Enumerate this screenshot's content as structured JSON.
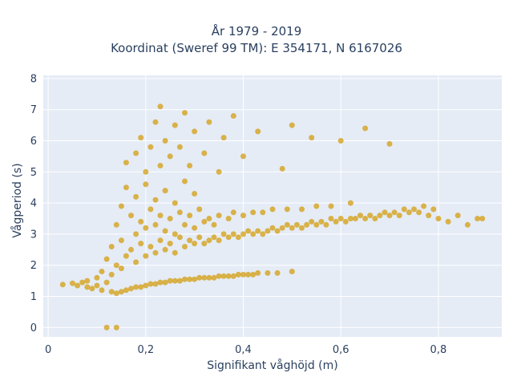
{
  "chart_data": {
    "type": "scatter",
    "title_line1": "År 1979 - 2019",
    "title_line2": "Koordinat (Sweref 99 TM): E 354171, N 6167026",
    "xlabel": "Signifikant våghöjd (m)",
    "ylabel": "Vågperiod (s)",
    "xlim": [
      -0.01,
      0.93
    ],
    "ylim": [
      -0.3,
      8.1
    ],
    "xticks": [
      0,
      0.2,
      0.4,
      0.6,
      0.8
    ],
    "xtick_labels": [
      "0",
      "0,2",
      "0,4",
      "0,6",
      "0,8"
    ],
    "yticks": [
      0,
      1,
      2,
      3,
      4,
      5,
      6,
      7,
      8
    ],
    "ytick_labels": [
      "0",
      "1",
      "2",
      "3",
      "4",
      "5",
      "6",
      "7",
      "8"
    ],
    "grid": true,
    "legend": "none",
    "marker_color": "#D4A21E",
    "plot_bgcolor": "#E5ECF6",
    "series": [
      {
        "values": [
          [
            0.03,
            1.38
          ],
          [
            0.05,
            1.42
          ],
          [
            0.06,
            1.35
          ],
          [
            0.07,
            1.45
          ],
          [
            0.08,
            1.3
          ],
          [
            0.08,
            1.5
          ],
          [
            0.09,
            1.25
          ],
          [
            0.1,
            1.35
          ],
          [
            0.1,
            1.6
          ],
          [
            0.11,
            1.2
          ],
          [
            0.11,
            1.8
          ],
          [
            0.12,
            2.2
          ],
          [
            0.12,
            1.45
          ],
          [
            0.13,
            1.15
          ],
          [
            0.13,
            1.7
          ],
          [
            0.13,
            2.6
          ],
          [
            0.14,
            1.1
          ],
          [
            0.14,
            2.0
          ],
          [
            0.14,
            3.3
          ],
          [
            0.15,
            1.15
          ],
          [
            0.15,
            1.9
          ],
          [
            0.15,
            2.8
          ],
          [
            0.15,
            3.9
          ],
          [
            0.16,
            1.2
          ],
          [
            0.16,
            2.3
          ],
          [
            0.16,
            4.5
          ],
          [
            0.16,
            5.3
          ],
          [
            0.17,
            1.25
          ],
          [
            0.17,
            2.5
          ],
          [
            0.17,
            3.6
          ],
          [
            0.18,
            1.3
          ],
          [
            0.18,
            2.1
          ],
          [
            0.18,
            3.0
          ],
          [
            0.18,
            4.2
          ],
          [
            0.18,
            5.6
          ],
          [
            0.19,
            1.3
          ],
          [
            0.19,
            2.7
          ],
          [
            0.19,
            3.4
          ],
          [
            0.19,
            6.1
          ],
          [
            0.2,
            1.35
          ],
          [
            0.2,
            2.3
          ],
          [
            0.2,
            3.2
          ],
          [
            0.2,
            4.6
          ],
          [
            0.2,
            5.0
          ],
          [
            0.21,
            1.4
          ],
          [
            0.21,
            2.6
          ],
          [
            0.21,
            3.8
          ],
          [
            0.21,
            5.8
          ],
          [
            0.22,
            1.4
          ],
          [
            0.22,
            2.4
          ],
          [
            0.22,
            3.3
          ],
          [
            0.22,
            4.1
          ],
          [
            0.22,
            6.6
          ],
          [
            0.23,
            1.45
          ],
          [
            0.23,
            2.8
          ],
          [
            0.23,
            3.6
          ],
          [
            0.23,
            5.2
          ],
          [
            0.23,
            7.1
          ],
          [
            0.24,
            1.45
          ],
          [
            0.24,
            2.5
          ],
          [
            0.24,
            3.1
          ],
          [
            0.24,
            4.4
          ],
          [
            0.24,
            6.0
          ],
          [
            0.25,
            1.5
          ],
          [
            0.25,
            2.7
          ],
          [
            0.25,
            3.5
          ],
          [
            0.25,
            5.5
          ],
          [
            0.26,
            1.5
          ],
          [
            0.26,
            2.4
          ],
          [
            0.26,
            3.0
          ],
          [
            0.26,
            4.0
          ],
          [
            0.26,
            6.5
          ],
          [
            0.27,
            1.5
          ],
          [
            0.27,
            2.9
          ],
          [
            0.27,
            3.7
          ],
          [
            0.27,
            5.8
          ],
          [
            0.28,
            1.55
          ],
          [
            0.28,
            2.6
          ],
          [
            0.28,
            3.3
          ],
          [
            0.28,
            4.7
          ],
          [
            0.28,
            6.9
          ],
          [
            0.29,
            1.55
          ],
          [
            0.29,
            2.8
          ],
          [
            0.29,
            3.6
          ],
          [
            0.29,
            5.2
          ],
          [
            0.3,
            1.55
          ],
          [
            0.3,
            2.7
          ],
          [
            0.3,
            3.2
          ],
          [
            0.3,
            4.3
          ],
          [
            0.3,
            6.3
          ],
          [
            0.31,
            1.6
          ],
          [
            0.31,
            2.9
          ],
          [
            0.31,
            3.8
          ],
          [
            0.32,
            1.6
          ],
          [
            0.32,
            2.7
          ],
          [
            0.32,
            3.4
          ],
          [
            0.32,
            5.6
          ],
          [
            0.33,
            1.6
          ],
          [
            0.33,
            2.8
          ],
          [
            0.33,
            3.5
          ],
          [
            0.33,
            6.6
          ],
          [
            0.34,
            1.6
          ],
          [
            0.34,
            2.9
          ],
          [
            0.34,
            3.3
          ],
          [
            0.35,
            1.65
          ],
          [
            0.35,
            2.8
          ],
          [
            0.35,
            3.6
          ],
          [
            0.35,
            5.0
          ],
          [
            0.36,
            1.65
          ],
          [
            0.36,
            3.0
          ],
          [
            0.36,
            6.1
          ],
          [
            0.37,
            1.65
          ],
          [
            0.37,
            2.9
          ],
          [
            0.37,
            3.5
          ],
          [
            0.38,
            1.65
          ],
          [
            0.38,
            3.0
          ],
          [
            0.38,
            3.7
          ],
          [
            0.38,
            6.8
          ],
          [
            0.39,
            1.7
          ],
          [
            0.39,
            2.9
          ],
          [
            0.4,
            1.7
          ],
          [
            0.4,
            3.0
          ],
          [
            0.4,
            3.6
          ],
          [
            0.4,
            5.5
          ],
          [
            0.41,
            1.7
          ],
          [
            0.41,
            3.1
          ],
          [
            0.42,
            1.7
          ],
          [
            0.42,
            3.0
          ],
          [
            0.42,
            3.7
          ],
          [
            0.43,
            1.75
          ],
          [
            0.43,
            3.1
          ],
          [
            0.43,
            6.3
          ],
          [
            0.44,
            3.0
          ],
          [
            0.44,
            3.7
          ],
          [
            0.45,
            1.75
          ],
          [
            0.45,
            3.1
          ],
          [
            0.46,
            3.2
          ],
          [
            0.46,
            3.8
          ],
          [
            0.47,
            1.75
          ],
          [
            0.47,
            3.1
          ],
          [
            0.48,
            3.2
          ],
          [
            0.48,
            5.1
          ],
          [
            0.49,
            3.3
          ],
          [
            0.49,
            3.8
          ],
          [
            0.5,
            1.8
          ],
          [
            0.5,
            3.2
          ],
          [
            0.5,
            6.5
          ],
          [
            0.51,
            3.3
          ],
          [
            0.52,
            3.2
          ],
          [
            0.52,
            3.8
          ],
          [
            0.53,
            3.3
          ],
          [
            0.54,
            3.4
          ],
          [
            0.54,
            6.1
          ],
          [
            0.55,
            3.3
          ],
          [
            0.55,
            3.9
          ],
          [
            0.56,
            3.4
          ],
          [
            0.57,
            3.3
          ],
          [
            0.58,
            3.5
          ],
          [
            0.58,
            3.9
          ],
          [
            0.59,
            3.4
          ],
          [
            0.6,
            3.5
          ],
          [
            0.6,
            6.0
          ],
          [
            0.61,
            3.4
          ],
          [
            0.62,
            3.5
          ],
          [
            0.62,
            4.0
          ],
          [
            0.63,
            3.5
          ],
          [
            0.64,
            3.6
          ],
          [
            0.65,
            3.5
          ],
          [
            0.65,
            6.4
          ],
          [
            0.66,
            3.6
          ],
          [
            0.67,
            3.5
          ],
          [
            0.68,
            3.6
          ],
          [
            0.69,
            3.7
          ],
          [
            0.7,
            3.6
          ],
          [
            0.7,
            5.9
          ],
          [
            0.71,
            3.7
          ],
          [
            0.72,
            3.6
          ],
          [
            0.73,
            3.8
          ],
          [
            0.74,
            3.7
          ],
          [
            0.75,
            3.8
          ],
          [
            0.76,
            3.7
          ],
          [
            0.77,
            3.9
          ],
          [
            0.78,
            3.6
          ],
          [
            0.79,
            3.8
          ],
          [
            0.8,
            3.5
          ],
          [
            0.82,
            3.4
          ],
          [
            0.84,
            3.6
          ],
          [
            0.86,
            3.3
          ],
          [
            0.88,
            3.5
          ],
          [
            0.89,
            3.5
          ],
          [
            0.12,
            0.0
          ],
          [
            0.14,
            0.0
          ]
        ]
      }
    ]
  }
}
